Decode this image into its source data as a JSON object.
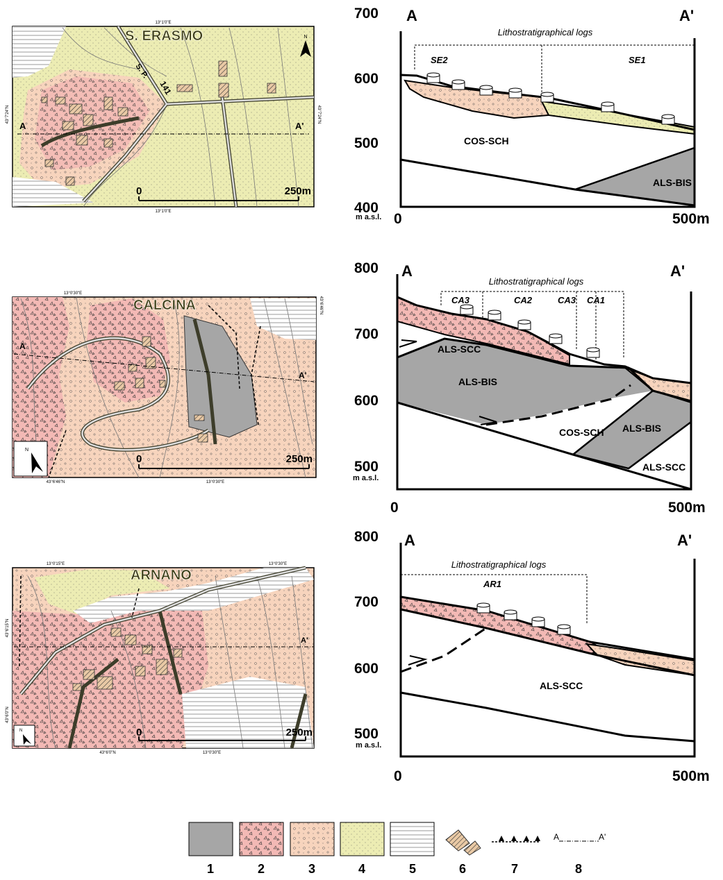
{
  "panels": [
    {
      "map": {
        "title": "S. ERASMO",
        "road": "S. P.",
        "road_number": "141",
        "north": "N",
        "coord_top": "13°1'0\"E",
        "coord_bottom": "13°1'0\"E",
        "coord_left": "43°7'24\"N",
        "coord_right": "43°7'24\"N",
        "section_start": "A",
        "section_end": "A'",
        "scale_start": "0",
        "scale_end": "250m"
      },
      "section": {
        "start": "A",
        "end": "A'",
        "y_ticks": [
          "700",
          "600",
          "500",
          "400"
        ],
        "unit": "m a.s.l.",
        "x_start": "0",
        "x_end": "500m",
        "logs_title": "Lithostratigraphical logs",
        "logs": [
          "SE2",
          "SE1"
        ],
        "units": [
          "COS-SCH",
          "ALS-BIS"
        ]
      }
    },
    {
      "map": {
        "title": "CALCINA",
        "north": "N",
        "coord_top": "13°0'30\"E",
        "coord_bottom": "13°0'30\"E",
        "coord_left": "43°6'46\"N",
        "coord_right": "43°6'46\"N",
        "section_start": "A",
        "section_end": "A'",
        "scale_start": "0",
        "scale_end": "250m"
      },
      "section": {
        "start": "A",
        "end": "A'",
        "y_ticks": [
          "800",
          "700",
          "600",
          "500"
        ],
        "unit": "m a.s.l.",
        "x_start": "0",
        "x_end": "500m",
        "logs_title": "Lithostratigraphical logs",
        "logs": [
          "CA3",
          "CA2",
          "CA3",
          "CA1"
        ],
        "units": [
          "ALS-SCC",
          "ALS-BIS",
          "COS-SCH",
          "ALS-BIS",
          "ALS-SCC"
        ]
      }
    },
    {
      "map": {
        "title": "ARNANO",
        "north": "N",
        "coord_top": "13°0'15\"E",
        "coord_top_2": "13°0'30\"E",
        "coord_bottom": "13°0'30\"E",
        "coord_bottom_left": "43°6'0\"N",
        "coord_left": "43°6'15\"N",
        "coord_left_2": "43°6'0\"N",
        "section_end": "A'",
        "scale_start": "0",
        "scale_end": "250m"
      },
      "section": {
        "start": "A",
        "end": "A'",
        "y_ticks": [
          "800",
          "700",
          "600",
          "500"
        ],
        "unit": "m a.s.l.",
        "x_start": "0",
        "x_end": "500m",
        "logs_title": "Lithostratigraphical logs",
        "logs": [
          "AR1"
        ],
        "units": [
          "ALS-SCC"
        ]
      }
    }
  ],
  "legend": {
    "items": [
      "1",
      "2",
      "3",
      "4",
      "5",
      "6",
      "7",
      "8"
    ],
    "trace_start": "A",
    "trace_end": "A'"
  }
}
